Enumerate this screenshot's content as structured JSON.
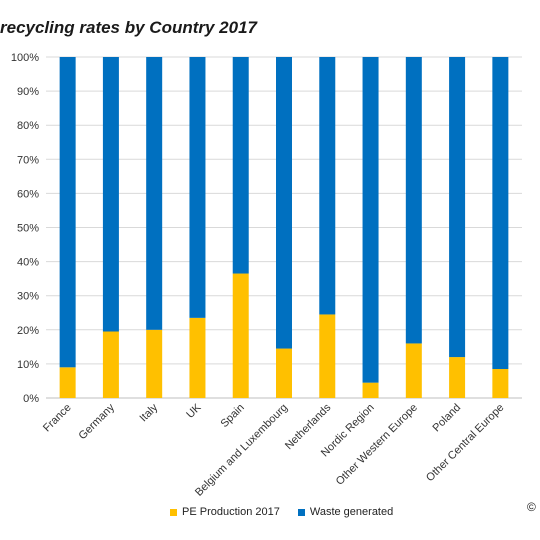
{
  "chart_data": {
    "type": "bar",
    "stacked": true,
    "title": "recycling rates by Country 2017",
    "categories": [
      "France",
      "Germany",
      "Italy",
      "UK",
      "Spain",
      "Belgium and Luxembourg",
      "Netherlands",
      "Nordic Region",
      "Other Western Europe",
      "Poland",
      "Other Central Europe"
    ],
    "series": [
      {
        "name": "PE Production 2017",
        "color": "#FFC000",
        "values": [
          9,
          19.5,
          20,
          23.5,
          36.5,
          14.5,
          24.5,
          4.5,
          16,
          12,
          8.5
        ]
      },
      {
        "name": "Waste generated",
        "color": "#0070C0",
        "values": [
          91,
          80.5,
          80,
          76.5,
          63.5,
          85.5,
          75.5,
          95.5,
          84,
          88,
          91.5
        ]
      }
    ],
    "yticks": [
      "0%",
      "10%",
      "20%",
      "30%",
      "40%",
      "50%",
      "60%",
      "70%",
      "80%",
      "90%",
      "100%"
    ],
    "ylim": [
      0,
      100
    ],
    "grid": true,
    "legend_position": "bottom"
  },
  "copyright_symbol": "©"
}
